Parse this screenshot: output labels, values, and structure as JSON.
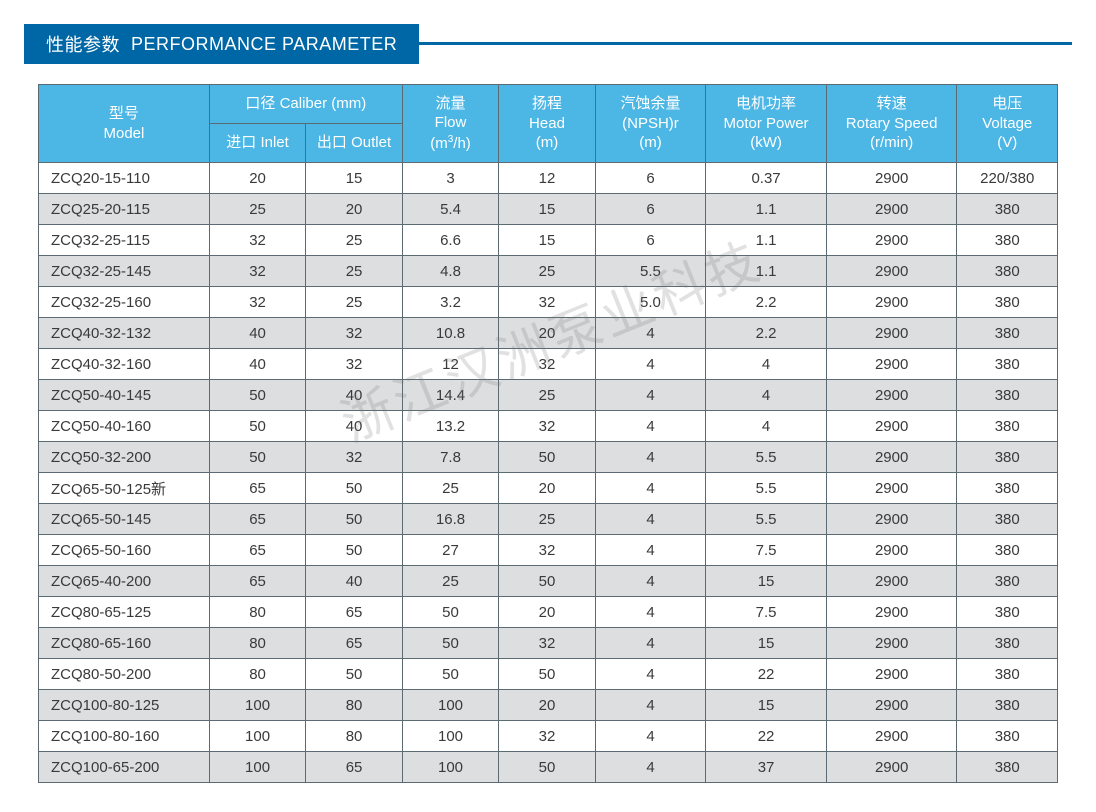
{
  "colors": {
    "title_bg": "#0067a7",
    "header_bg": "#4cb6e4",
    "border": "#5c6a73",
    "text": "#3a3a3a",
    "row_odd": "#ffffff",
    "row_even": "#dcdedf",
    "watermark": "rgba(120,120,120,0.22)"
  },
  "title": {
    "cn": "性能参数",
    "en": "PERFORMANCE PARAMETER"
  },
  "watermark_text": "浙江汉洲泵业科技",
  "table": {
    "header": {
      "model": {
        "cn": "型号",
        "en": "Model"
      },
      "caliber_group": {
        "cn": "口径",
        "en": "Caliber (mm)"
      },
      "inlet": {
        "cn": "进口",
        "en": "Inlet"
      },
      "outlet": {
        "cn": "出口",
        "en": "Outlet"
      },
      "flow": {
        "cn": "流量",
        "en": "Flow",
        "unit": "(m³/h)"
      },
      "head": {
        "cn": "扬程",
        "en": "Head",
        "unit": "(m)"
      },
      "npsh": {
        "cn": "汽蚀余量",
        "en": "(NPSH)r",
        "unit": "(m)"
      },
      "power": {
        "cn": "电机功率",
        "en": "Motor Power",
        "unit": "(kW)"
      },
      "speed": {
        "cn": "转速",
        "en": "Rotary Speed",
        "unit": "(r/min)"
      },
      "voltage": {
        "cn": "电压",
        "en": "Voltage",
        "unit": "(V)"
      }
    },
    "rows": [
      {
        "model": "ZCQ20-15-110",
        "inlet": "20",
        "outlet": "15",
        "flow": "3",
        "head": "12",
        "npsh": "6",
        "power": "0.37",
        "speed": "2900",
        "voltage": "220/380"
      },
      {
        "model": "ZCQ25-20-115",
        "inlet": "25",
        "outlet": "20",
        "flow": "5.4",
        "head": "15",
        "npsh": "6",
        "power": "1.1",
        "speed": "2900",
        "voltage": "380"
      },
      {
        "model": "ZCQ32-25-115",
        "inlet": "32",
        "outlet": "25",
        "flow": "6.6",
        "head": "15",
        "npsh": "6",
        "power": "1.1",
        "speed": "2900",
        "voltage": "380"
      },
      {
        "model": "ZCQ32-25-145",
        "inlet": "32",
        "outlet": "25",
        "flow": "4.8",
        "head": "25",
        "npsh": "5.5",
        "power": "1.1",
        "speed": "2900",
        "voltage": "380"
      },
      {
        "model": "ZCQ32-25-160",
        "inlet": "32",
        "outlet": "25",
        "flow": "3.2",
        "head": "32",
        "npsh": "5.0",
        "power": "2.2",
        "speed": "2900",
        "voltage": "380"
      },
      {
        "model": "ZCQ40-32-132",
        "inlet": "40",
        "outlet": "32",
        "flow": "10.8",
        "head": "20",
        "npsh": "4",
        "power": "2.2",
        "speed": "2900",
        "voltage": "380"
      },
      {
        "model": "ZCQ40-32-160",
        "inlet": "40",
        "outlet": "32",
        "flow": "12",
        "head": "32",
        "npsh": "4",
        "power": "4",
        "speed": "2900",
        "voltage": "380"
      },
      {
        "model": "ZCQ50-40-145",
        "inlet": "50",
        "outlet": "40",
        "flow": "14.4",
        "head": "25",
        "npsh": "4",
        "power": "4",
        "speed": "2900",
        "voltage": "380"
      },
      {
        "model": "ZCQ50-40-160",
        "inlet": "50",
        "outlet": "40",
        "flow": "13.2",
        "head": "32",
        "npsh": "4",
        "power": "4",
        "speed": "2900",
        "voltage": "380"
      },
      {
        "model": "ZCQ50-32-200",
        "inlet": "50",
        "outlet": "32",
        "flow": "7.8",
        "head": "50",
        "npsh": "4",
        "power": "5.5",
        "speed": "2900",
        "voltage": "380"
      },
      {
        "model": "ZCQ65-50-125新",
        "inlet": "65",
        "outlet": "50",
        "flow": "25",
        "head": "20",
        "npsh": "4",
        "power": "5.5",
        "speed": "2900",
        "voltage": "380"
      },
      {
        "model": "ZCQ65-50-145",
        "inlet": "65",
        "outlet": "50",
        "flow": "16.8",
        "head": "25",
        "npsh": "4",
        "power": "5.5",
        "speed": "2900",
        "voltage": "380"
      },
      {
        "model": "ZCQ65-50-160",
        "inlet": "65",
        "outlet": "50",
        "flow": "27",
        "head": "32",
        "npsh": "4",
        "power": "7.5",
        "speed": "2900",
        "voltage": "380"
      },
      {
        "model": "ZCQ65-40-200",
        "inlet": "65",
        "outlet": "40",
        "flow": "25",
        "head": "50",
        "npsh": "4",
        "power": "15",
        "speed": "2900",
        "voltage": "380"
      },
      {
        "model": "ZCQ80-65-125",
        "inlet": "80",
        "outlet": "65",
        "flow": "50",
        "head": "20",
        "npsh": "4",
        "power": "7.5",
        "speed": "2900",
        "voltage": "380"
      },
      {
        "model": "ZCQ80-65-160",
        "inlet": "80",
        "outlet": "65",
        "flow": "50",
        "head": "32",
        "npsh": "4",
        "power": "15",
        "speed": "2900",
        "voltage": "380"
      },
      {
        "model": "ZCQ80-50-200",
        "inlet": "80",
        "outlet": "50",
        "flow": "50",
        "head": "50",
        "npsh": "4",
        "power": "22",
        "speed": "2900",
        "voltage": "380"
      },
      {
        "model": "ZCQ100-80-125",
        "inlet": "100",
        "outlet": "80",
        "flow": "100",
        "head": "20",
        "npsh": "4",
        "power": "15",
        "speed": "2900",
        "voltage": "380"
      },
      {
        "model": "ZCQ100-80-160",
        "inlet": "100",
        "outlet": "80",
        "flow": "100",
        "head": "32",
        "npsh": "4",
        "power": "22",
        "speed": "2900",
        "voltage": "380"
      },
      {
        "model": "ZCQ100-65-200",
        "inlet": "100",
        "outlet": "65",
        "flow": "100",
        "head": "50",
        "npsh": "4",
        "power": "37",
        "speed": "2900",
        "voltage": "380"
      }
    ]
  }
}
